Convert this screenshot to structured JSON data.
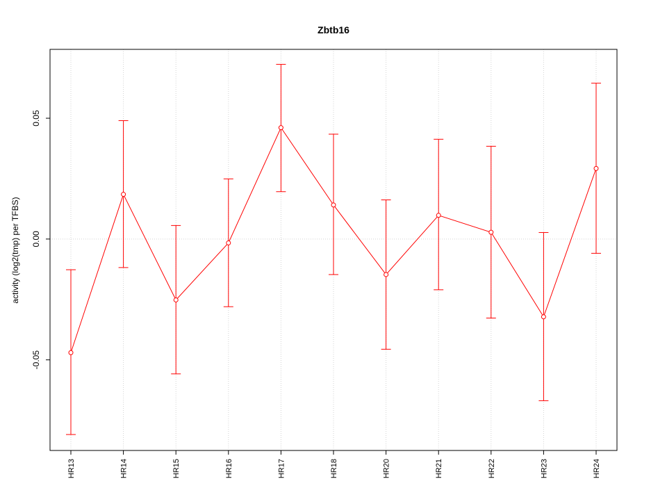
{
  "chart_data": {
    "type": "line",
    "title": "Zbtb16",
    "xlabel": "",
    "ylabel": "activity (log2(tmp) per TFBS)",
    "categories": [
      "HR13",
      "HR14",
      "HR15",
      "HR16",
      "HR17",
      "HR18",
      "HR20",
      "HR21",
      "HR22",
      "HR23",
      "HR24"
    ],
    "series": [
      {
        "values": [
          -0.047,
          0.0185,
          -0.0252,
          -0.0016,
          0.0461,
          0.0141,
          -0.0147,
          0.0098,
          0.0028,
          -0.0322,
          0.0292
        ],
        "lower": [
          -0.0809,
          -0.0118,
          -0.0558,
          -0.028,
          0.0196,
          -0.0147,
          -0.0456,
          -0.021,
          -0.0327,
          -0.0669,
          -0.0059
        ],
        "upper": [
          -0.0127,
          0.049,
          0.0056,
          0.0249,
          0.0723,
          0.0434,
          0.0162,
          0.0413,
          0.0384,
          0.0027,
          0.0645
        ]
      }
    ],
    "ylim": [
      -0.0875,
      0.0785
    ],
    "yticks": [
      "-0.05",
      "0.00",
      "0.05"
    ],
    "ytick_values": [
      -0.05,
      0.0,
      0.05
    ],
    "color": "#ff0000",
    "grid": true
  }
}
